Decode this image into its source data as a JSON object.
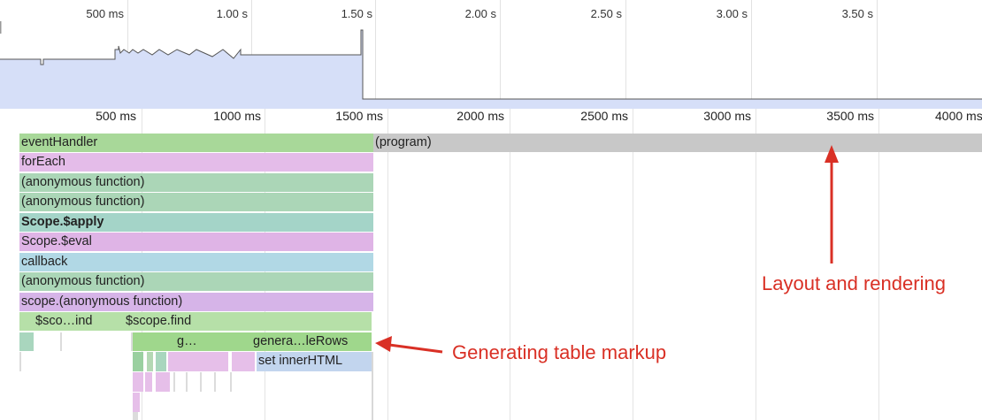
{
  "overview": {
    "tick_labels": [
      "500 ms",
      "1.00 s",
      "1.50 s",
      "2.00 s",
      "2.50 s",
      "3.00 s",
      "3.50 s"
    ]
  },
  "ruler": {
    "tick_labels": [
      "500 ms",
      "1000 ms",
      "1500 ms",
      "2000 ms",
      "2500 ms",
      "3000 ms",
      "3500 ms",
      "4000 ms"
    ]
  },
  "flame": {
    "rows": [
      {
        "label": "eventHandler",
        "color": "#a8d899"
      },
      {
        "label": "forEach",
        "color": "#e4bce9"
      },
      {
        "label": "(anonymous function)",
        "color": "#abd6b7"
      },
      {
        "label": "(anonymous function)",
        "color": "#abd6b7"
      },
      {
        "label": "Scope.$apply",
        "color": "#a4d4c8"
      },
      {
        "label": "Scope.$eval",
        "color": "#dfb4e6"
      },
      {
        "label": "callback",
        "color": "#b1d8e5"
      },
      {
        "label": "(anonymous function)",
        "color": "#abd6b7"
      },
      {
        "label": "scope.(anonymous function)",
        "color": "#d6b4e8"
      }
    ],
    "program_label": "(program)",
    "program_color": "#c8c8c8",
    "row10": {
      "left": "$sco…ind",
      "right": "$scope.find",
      "color": "#b6e0a8"
    },
    "row11": {
      "g": "g…",
      "genera": "genera…leRows",
      "color": "#9fd78c"
    },
    "row12": {
      "set": "set innerHTML",
      "color": "#c2d5ee"
    }
  },
  "annotations": {
    "layout": "Layout and rendering",
    "markup": "Generating table markup",
    "color": "#d93025"
  }
}
